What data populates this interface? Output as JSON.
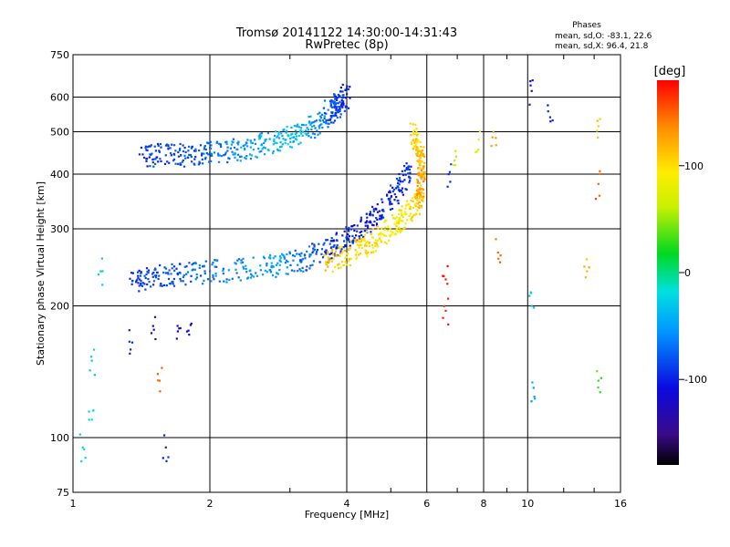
{
  "chart_data": {
    "type": "scatter",
    "title": "Tromsø 20141122 14:30:00-14:31:43",
    "subtitle": "RwPretec (8p)",
    "xlabel": "Frequency [MHz]",
    "ylabel": "Stationary phase Virtual Height [km]",
    "x_scale": "log",
    "y_scale": "log",
    "xlim": [
      1,
      16
    ],
    "ylim": [
      75,
      750
    ],
    "x_ticks": [
      1,
      2,
      4,
      6,
      8,
      10,
      16
    ],
    "x_tick_labels": [
      "1",
      "2",
      "4",
      "6",
      "8",
      "10",
      "16"
    ],
    "y_ticks": [
      75,
      100,
      200,
      300,
      400,
      500,
      600,
      750
    ],
    "y_tick_labels": [
      "75",
      "100",
      "200",
      "300",
      "400",
      "500",
      "600",
      "750"
    ],
    "grid": true,
    "stats": {
      "title": "Phases",
      "line_o": "mean, sd,O: -83.1, 22.6",
      "line_x": "mean, sd,X:  96.4, 21.8"
    },
    "colorbar": {
      "label": "[deg]",
      "range": [
        -180,
        180
      ],
      "ticks": [
        100,
        0,
        -100
      ],
      "tick_labels": [
        "100",
        "0",
        "-100"
      ],
      "colormap": "rainbow"
    },
    "series": [
      {
        "trace": "upper_F_trace",
        "points": [
          [
            1.4,
            444,
            -95
          ],
          [
            1.6,
            442,
            -88
          ],
          [
            1.8,
            443,
            -82
          ],
          [
            2.0,
            448,
            -72
          ],
          [
            2.3,
            456,
            -58
          ],
          [
            2.6,
            468,
            -45
          ],
          [
            2.9,
            482,
            -35
          ],
          [
            3.2,
            500,
            -40
          ],
          [
            3.5,
            530,
            -60
          ],
          [
            3.8,
            570,
            -85
          ],
          [
            4.0,
            610,
            -100
          ],
          [
            3.6,
            550,
            -75
          ]
        ]
      },
      {
        "trace": "lower_F_trace_O",
        "points": [
          [
            1.35,
            228,
            -95
          ],
          [
            1.5,
            233,
            -88
          ],
          [
            1.7,
            236,
            -80
          ],
          [
            2.0,
            240,
            -70
          ],
          [
            2.4,
            243,
            -58
          ],
          [
            2.8,
            248,
            -50
          ],
          [
            3.2,
            256,
            -72
          ],
          [
            3.6,
            268,
            -92
          ],
          [
            4.0,
            285,
            -100
          ],
          [
            4.4,
            305,
            -105
          ],
          [
            4.8,
            332,
            -100
          ],
          [
            5.2,
            368,
            -95
          ],
          [
            5.5,
            410,
            -90
          ]
        ]
      },
      {
        "trace": "lower_F_trace_X",
        "points": [
          [
            3.6,
            252,
            110
          ],
          [
            4.0,
            262,
            108
          ],
          [
            4.4,
            276,
            100
          ],
          [
            4.8,
            292,
            95
          ],
          [
            5.2,
            312,
            92
          ],
          [
            5.6,
            335,
            98
          ],
          [
            5.8,
            360,
            120
          ],
          [
            5.85,
            400,
            130
          ],
          [
            5.8,
            450,
            110
          ],
          [
            5.6,
            500,
            100
          ]
        ]
      },
      {
        "trace": "low_height_echoes",
        "points": [
          [
            1.05,
            95,
            -10
          ],
          [
            1.1,
            110,
            -20
          ],
          [
            1.1,
            150,
            -30
          ],
          [
            1.15,
            240,
            -25
          ],
          [
            1.35,
            165,
            -100
          ],
          [
            1.5,
            180,
            -110
          ],
          [
            1.7,
            175,
            -120
          ],
          [
            1.8,
            172,
            -115
          ],
          [
            1.55,
            135,
            150
          ],
          [
            1.6,
            95,
            -100
          ]
        ]
      },
      {
        "trace": "high_frequency_echoes",
        "points": [
          [
            6.7,
            400,
            -95
          ],
          [
            6.9,
            430,
            60
          ],
          [
            6.6,
            230,
            170
          ],
          [
            6.6,
            195,
            170
          ],
          [
            7.8,
            480,
            80
          ],
          [
            8.4,
            500,
            130
          ],
          [
            8.6,
            265,
            150
          ],
          [
            10.2,
            620,
            -110
          ],
          [
            10.3,
            130,
            -50
          ],
          [
            10.2,
            200,
            -30
          ],
          [
            11.2,
            540,
            -100
          ],
          [
            13.5,
            240,
            120
          ],
          [
            14.3,
            135,
            30
          ],
          [
            14.3,
            380,
            150
          ],
          [
            14.3,
            515,
            110
          ]
        ]
      }
    ]
  }
}
